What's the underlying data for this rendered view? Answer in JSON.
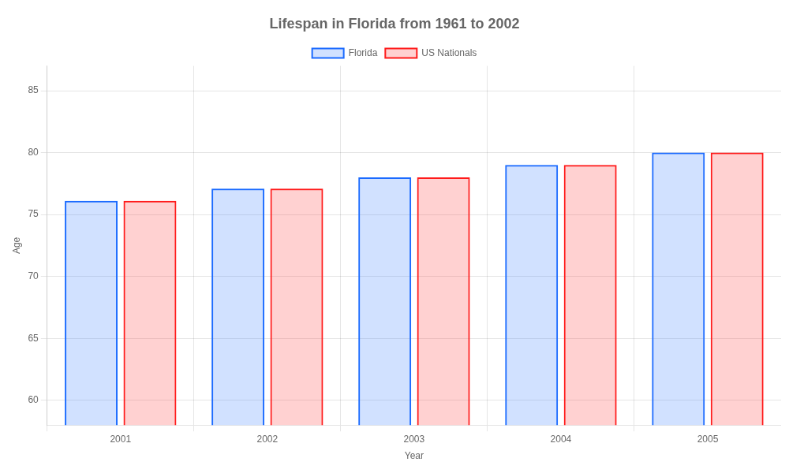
{
  "chart_data": {
    "type": "bar",
    "title": "Lifespan in Florida from 1961 to 2002",
    "xlabel": "Year",
    "ylabel": "Age",
    "categories": [
      "2001",
      "2002",
      "2003",
      "2004",
      "2005"
    ],
    "series": [
      {
        "name": "Florida",
        "color": "#1a6aff",
        "values": [
          76.1,
          77.1,
          78.0,
          79.0,
          80.0
        ]
      },
      {
        "name": "US Nationals",
        "color": "#ff1a1a",
        "values": [
          76.1,
          77.1,
          78.0,
          79.0,
          80.0
        ]
      }
    ],
    "ylim": [
      58,
      87
    ],
    "yticks": [
      60,
      65,
      70,
      75,
      80,
      85
    ],
    "grid": true,
    "legend": "top"
  }
}
